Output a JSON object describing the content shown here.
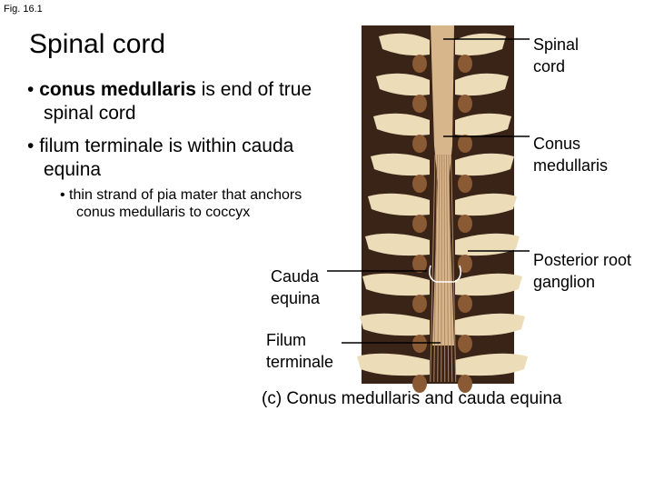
{
  "figure_label": "Fig. 16.1",
  "title": "Spinal cord",
  "bullets": [
    {
      "term": "conus medullaris",
      "text": "is end of true spinal cord"
    },
    {
      "text": "filum terminale is within cauda equina"
    }
  ],
  "sub_bullets": [
    "thin strand of pia mater that anchors conus medullaris to coccyx"
  ],
  "labels": {
    "spinal_cord": "Spinal cord",
    "conus_medullaris": "Conus medullaris",
    "posterior_root_ganglion": "Posterior root ganglion",
    "cauda_equina": "Cauda equina",
    "filum_terminale": "Filum terminale"
  },
  "caption": "(c) Conus medullaris and cauda equina"
}
